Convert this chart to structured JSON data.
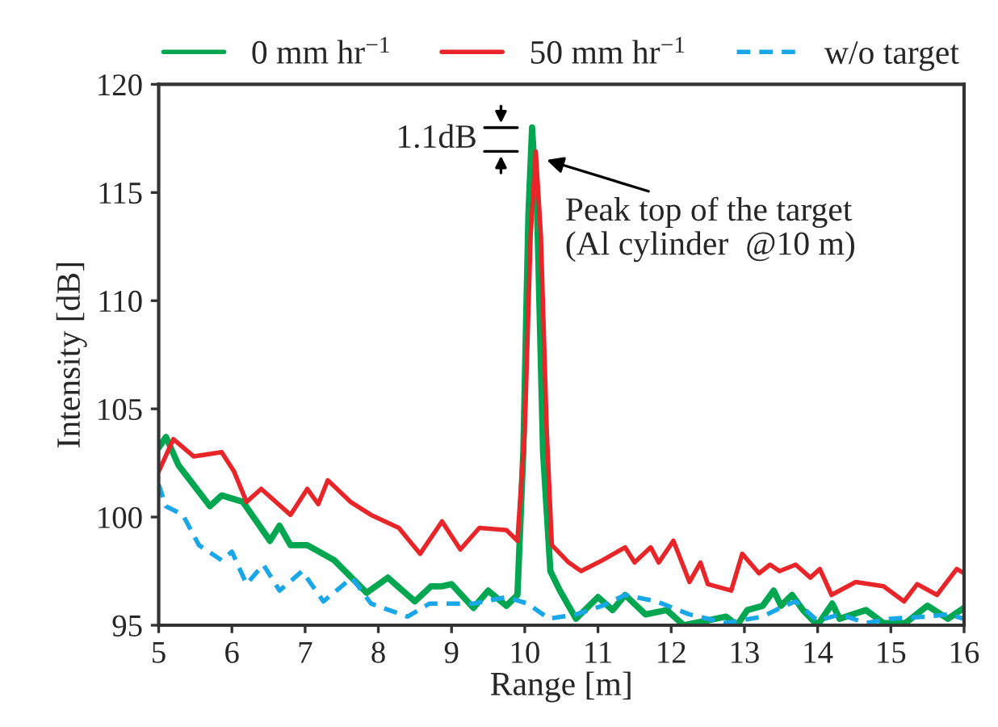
{
  "chart_data": {
    "type": "line",
    "xlabel": "Range [m]",
    "ylabel": "Intensity [dB]",
    "xlim": [
      5,
      16
    ],
    "xticks": [
      5,
      6,
      7,
      8,
      9,
      10,
      11,
      12,
      13,
      14,
      15,
      16
    ],
    "ylim": [
      95,
      120
    ],
    "yticks": [
      95,
      100,
      105,
      110,
      115,
      120
    ],
    "grid": false,
    "legend": "top",
    "line_style": "solid",
    "series": [
      {
        "name": "0 mm hr$^{−1}$",
        "color": "#00a650",
        "x": [
          5.0,
          5.1,
          5.27,
          5.7,
          5.86,
          6.15,
          6.52,
          6.65,
          6.8,
          7.03,
          7.4,
          7.84,
          8.13,
          8.5,
          8.72,
          8.87,
          9.0,
          9.3,
          9.5,
          9.75,
          9.9,
          9.98,
          10.05,
          10.1,
          10.17,
          10.25,
          10.35,
          10.48,
          10.7,
          11.0,
          11.2,
          11.37,
          11.65,
          11.94,
          12.17,
          12.47,
          12.75,
          12.9,
          13.04,
          13.25,
          13.4,
          13.5,
          13.65,
          13.8,
          14.0,
          14.2,
          14.3,
          14.66,
          14.9,
          15.2,
          15.5,
          15.78,
          16.0
        ],
        "values": [
          103.2,
          103.7,
          102.4,
          100.5,
          101.0,
          100.7,
          98.9,
          99.6,
          98.7,
          98.7,
          98.0,
          96.5,
          97.2,
          96.1,
          96.8,
          96.8,
          96.9,
          95.8,
          96.6,
          95.9,
          96.4,
          103.0,
          114.0,
          118.0,
          114.0,
          103.0,
          97.5,
          96.6,
          95.3,
          96.3,
          95.7,
          96.4,
          95.5,
          95.7,
          95.0,
          95.2,
          95.4,
          95.0,
          95.7,
          95.9,
          96.6,
          95.9,
          96.4,
          95.7,
          95.0,
          96.0,
          95.3,
          95.7,
          95.1,
          95.1,
          95.9,
          95.3,
          95.8
        ]
      },
      {
        "name": "50 mm hr$^{−1}$",
        "color": "#e8262a",
        "x": [
          5.0,
          5.2,
          5.48,
          5.86,
          6.03,
          6.2,
          6.4,
          6.8,
          7.03,
          7.18,
          7.31,
          7.62,
          7.9,
          8.28,
          8.57,
          8.87,
          9.12,
          9.38,
          9.75,
          9.9,
          10.0,
          10.08,
          10.15,
          10.22,
          10.3,
          10.37,
          10.6,
          10.77,
          11.06,
          11.37,
          11.5,
          11.72,
          11.83,
          12.03,
          12.25,
          12.4,
          12.5,
          12.82,
          12.97,
          13.2,
          13.35,
          13.48,
          13.7,
          13.9,
          14.03,
          14.19,
          14.52,
          14.9,
          15.18,
          15.36,
          15.63,
          15.9,
          16.0
        ],
        "values": [
          102.1,
          103.6,
          102.8,
          103.0,
          102.1,
          100.7,
          101.3,
          100.1,
          101.3,
          100.6,
          101.7,
          100.7,
          100.1,
          99.5,
          98.3,
          99.8,
          98.5,
          99.5,
          99.4,
          98.9,
          104.0,
          113.0,
          116.9,
          113.0,
          104.0,
          98.7,
          97.9,
          97.5,
          98.0,
          98.6,
          97.9,
          98.6,
          97.9,
          98.9,
          97.0,
          97.9,
          96.9,
          96.6,
          98.3,
          97.4,
          97.8,
          97.5,
          97.8,
          97.2,
          97.6,
          96.4,
          97.0,
          96.8,
          96.1,
          96.9,
          96.4,
          97.6,
          97.4
        ]
      },
      {
        "name": "w/o target",
        "color": "#1aa7e8",
        "line_style": "dashed",
        "x": [
          5.0,
          5.1,
          5.33,
          5.55,
          5.86,
          6.0,
          6.2,
          6.43,
          6.65,
          6.96,
          7.25,
          7.64,
          7.9,
          8.4,
          8.7,
          8.87,
          9.3,
          9.75,
          10.04,
          10.33,
          10.7,
          11.06,
          11.37,
          11.8,
          12.25,
          12.5,
          12.75,
          13.25,
          13.55,
          13.7,
          14.0,
          14.3,
          14.66,
          15.0,
          15.5,
          15.78,
          16.0
        ],
        "values": [
          101.5,
          100.5,
          100.1,
          98.7,
          98.0,
          98.4,
          96.9,
          97.8,
          96.6,
          97.5,
          96.1,
          97.2,
          96.0,
          95.4,
          96.0,
          96.0,
          96.0,
          96.3,
          96.0,
          95.3,
          95.5,
          95.9,
          96.4,
          96.1,
          95.5,
          95.3,
          95.1,
          95.4,
          95.9,
          96.1,
          95.2,
          95.5,
          95.1,
          95.3,
          95.4,
          95.5,
          95.3
        ]
      }
    ],
    "annotations": [
      "1.1dB",
      {
        "text": "Peak top of the target\n(Al cylinder  @10 m)",
        "x": 10.2,
        "y": 116.8
      }
    ]
  }
}
